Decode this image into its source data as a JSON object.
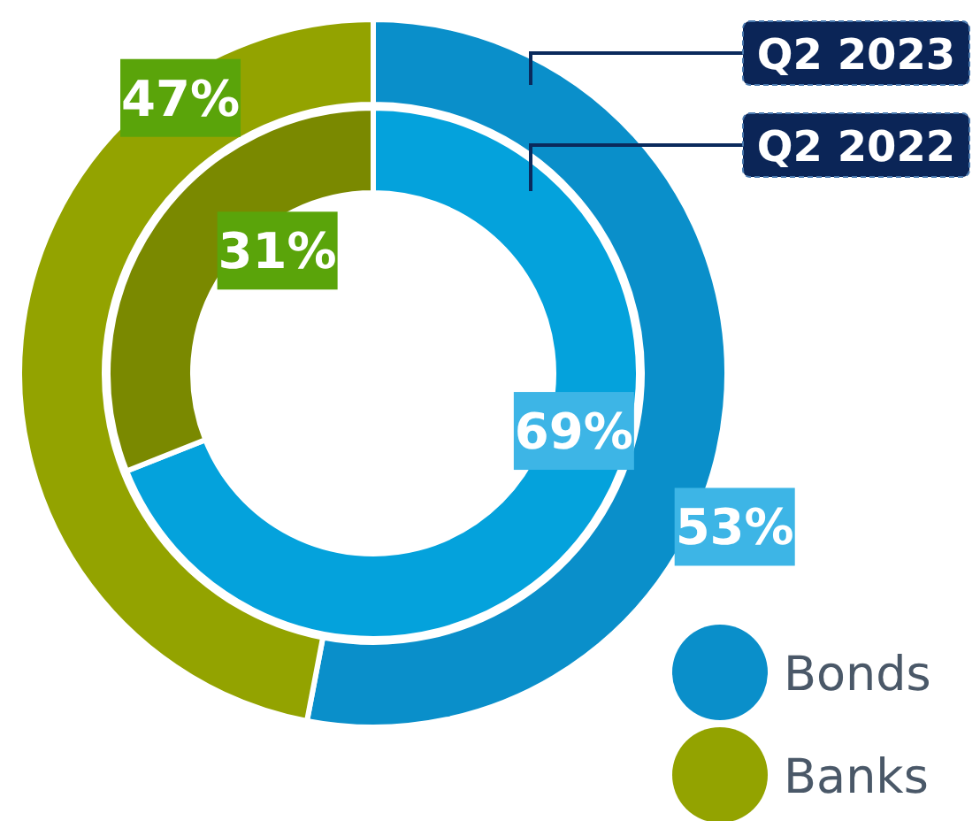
{
  "chart_data": {
    "type": "donut",
    "categories": [
      "Bonds",
      "Banks"
    ],
    "series": [
      {
        "name": "Q2 2023",
        "values": [
          53,
          47
        ],
        "value_labels": [
          "53%",
          "47%"
        ],
        "colors": [
          "#0a8fca",
          "#93a300"
        ]
      },
      {
        "name": "Q2 2022",
        "values": [
          69,
          31
        ],
        "value_labels": [
          "69%",
          "31%"
        ],
        "colors": [
          "#04a2dc",
          "#7a8900"
        ]
      }
    ],
    "legend": "bottom right"
  }
}
